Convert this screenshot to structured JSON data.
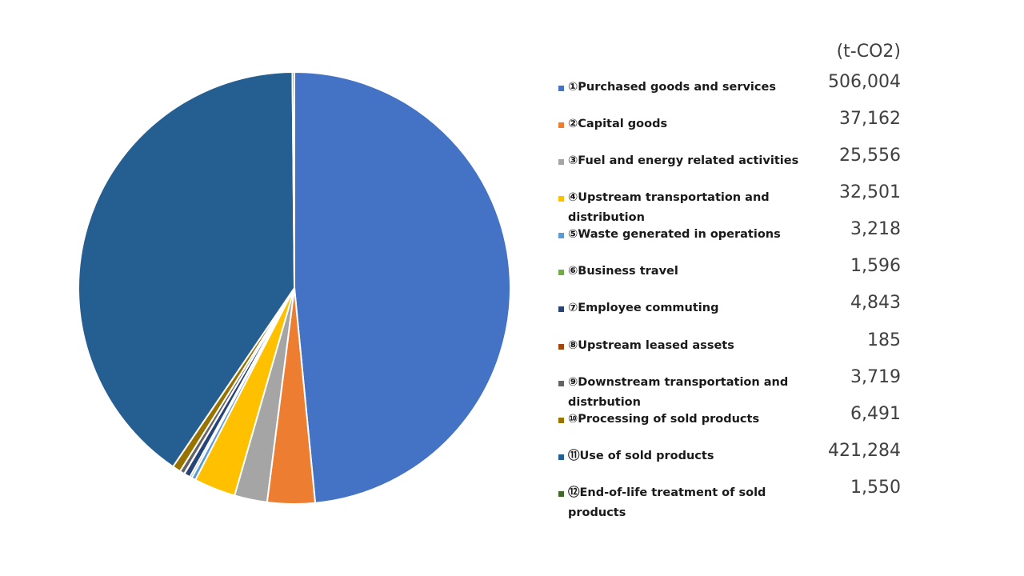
{
  "chart_data": {
    "type": "pie",
    "unit_label": "(t-CO2)",
    "legend_position": "right",
    "slices": [
      {
        "label": "①Purchased goods and services",
        "value": 506004,
        "value_text": "506,004",
        "color": "#4472C4"
      },
      {
        "label": "②Capital goods",
        "value": 37162,
        "value_text": "37,162",
        "color": "#ED7D31"
      },
      {
        "label": "③Fuel and energy related activities",
        "value": 25556,
        "value_text": "25,556",
        "color": "#A5A5A5"
      },
      {
        "label": "④Upstream transportation and distribution",
        "value": 32501,
        "value_text": "32,501",
        "color": "#FFC000"
      },
      {
        "label": "⑤Waste generated in operations",
        "value": 3218,
        "value_text": "3,218",
        "color": "#5B9BD5"
      },
      {
        "label": "⑥Business travel",
        "value": 1596,
        "value_text": "1,596",
        "color": "#70AD47"
      },
      {
        "label": "⑦Employee commuting",
        "value": 4843,
        "value_text": "4,843",
        "color": "#264478"
      },
      {
        "label": "⑧Upstream leased assets",
        "value": 185,
        "value_text": "185",
        "color": "#9E480E"
      },
      {
        "label": "⑨Downstream transportation and distrbution",
        "value": 3719,
        "value_text": "3,719",
        "color": "#636363"
      },
      {
        "label": "⑩Processing of sold products",
        "value": 6491,
        "value_text": "6,491",
        "color": "#997300"
      },
      {
        "label": "⑪Use of sold products",
        "value": 421284,
        "value_text": "421,284",
        "color": "#255E91"
      },
      {
        "label": "⑫End-of-life treatment of sold products",
        "value": 1550,
        "value_text": "1,550",
        "color": "#43682B"
      }
    ]
  }
}
